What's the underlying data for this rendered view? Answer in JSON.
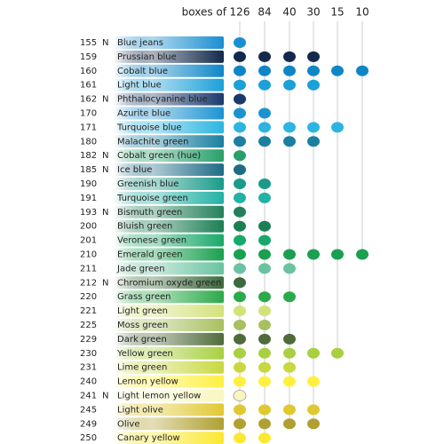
{
  "header": {
    "label": "boxes of",
    "boxes": [
      126,
      84,
      40,
      30,
      15,
      10
    ]
  },
  "rows": [
    {
      "number": "155",
      "flag": "N",
      "name": "Blue jeans",
      "color": "#1a8fd0",
      "boxes": [
        126
      ]
    },
    {
      "number": "159",
      "name": "Prussian blue",
      "color": "#13294b",
      "boxes": [
        126,
        84,
        40,
        30
      ]
    },
    {
      "number": "160",
      "name": "Cobalt blue",
      "color": "#0e86c6",
      "boxes": [
        126,
        84,
        40,
        30,
        15,
        10
      ]
    },
    {
      "number": "161",
      "name": "Light blue",
      "color": "#1ba0d8",
      "boxes": [
        126,
        84,
        40,
        30
      ]
    },
    {
      "number": "162",
      "flag": "N",
      "name": "Phthalocyanine blue",
      "color": "#1b3a6b",
      "boxes": [
        126
      ]
    },
    {
      "number": "170",
      "name": "Azurite blue",
      "color": "#1c93d1",
      "boxes": [
        126,
        84
      ]
    },
    {
      "number": "171",
      "name": "Turquoise blue",
      "color": "#2bb5e0",
      "boxes": [
        126,
        84,
        40,
        30,
        15
      ]
    },
    {
      "number": "180",
      "name": "Malachite green",
      "color": "#1a7fa0",
      "boxes": [
        126,
        84,
        40,
        30
      ]
    },
    {
      "number": "182",
      "flag": "N",
      "name": "Cobalt green (hue)",
      "color": "#27a06a",
      "boxes": [
        126
      ]
    },
    {
      "number": "185",
      "flag": "N",
      "name": "Ice blue",
      "color": "#1e6b86",
      "boxes": [
        126
      ]
    },
    {
      "number": "190",
      "name": "Greenish blue",
      "color": "#1a9b8a",
      "boxes": [
        126,
        84
      ]
    },
    {
      "number": "191",
      "name": "Turquoise green",
      "color": "#22b1a5",
      "boxes": [
        126,
        84
      ]
    },
    {
      "number": "193",
      "flag": "N",
      "name": "Bismuth green",
      "color": "#24805a",
      "boxes": [
        126
      ]
    },
    {
      "number": "200",
      "name": "Bluish green",
      "color": "#1c7e55",
      "boxes": [
        126,
        84
      ]
    },
    {
      "number": "201",
      "name": "Veronese green",
      "color": "#18a96a",
      "boxes": [
        126,
        84
      ]
    },
    {
      "number": "210",
      "name": "Emerald green",
      "color": "#1aa050",
      "boxes": [
        126,
        84,
        40,
        30,
        15,
        10
      ]
    },
    {
      "number": "211",
      "name": "Jade green",
      "color": "#6ac3a0",
      "boxes": [
        126,
        84,
        40
      ]
    },
    {
      "number": "212",
      "flag": "N",
      "name": "Chromium oxyde green",
      "color": "#3c6a3c",
      "boxes": [
        126
      ]
    },
    {
      "number": "220",
      "name": "Grass green",
      "color": "#2aaa4a",
      "boxes": [
        126,
        84,
        40
      ]
    },
    {
      "number": "221",
      "name": "Light green",
      "color": "#d4e27a",
      "boxes": [
        126,
        84
      ]
    },
    {
      "number": "225",
      "name": "Moss green",
      "color": "#a8c060",
      "boxes": [
        126,
        84
      ]
    },
    {
      "number": "229",
      "name": "Dark green",
      "color": "#4f6b3a",
      "boxes": [
        126,
        84,
        40
      ]
    },
    {
      "number": "230",
      "name": "Yellow green",
      "color": "#a8d040",
      "boxes": [
        126,
        84,
        40,
        30,
        15
      ]
    },
    {
      "number": "231",
      "name": "Lime green",
      "color": "#c8d840",
      "boxes": [
        126,
        84,
        40
      ]
    },
    {
      "number": "240",
      "name": "Lemon yellow",
      "color": "#fff040",
      "boxes": [
        126,
        84,
        40,
        30
      ]
    },
    {
      "number": "241",
      "flag": "N",
      "name": "Light lemon yellow",
      "color": "#f8f6c0",
      "boxes": [
        126
      ]
    },
    {
      "number": "245",
      "name": "Light olive",
      "color": "#e0c830",
      "boxes": [
        126,
        84,
        40,
        30
      ]
    },
    {
      "number": "249",
      "name": "Olive",
      "color": "#b0a030",
      "boxes": [
        126,
        84,
        40,
        30
      ]
    },
    {
      "number": "250",
      "name": "Canary yellow",
      "color": "#fbe830",
      "boxes": [
        126,
        84
      ]
    }
  ]
}
